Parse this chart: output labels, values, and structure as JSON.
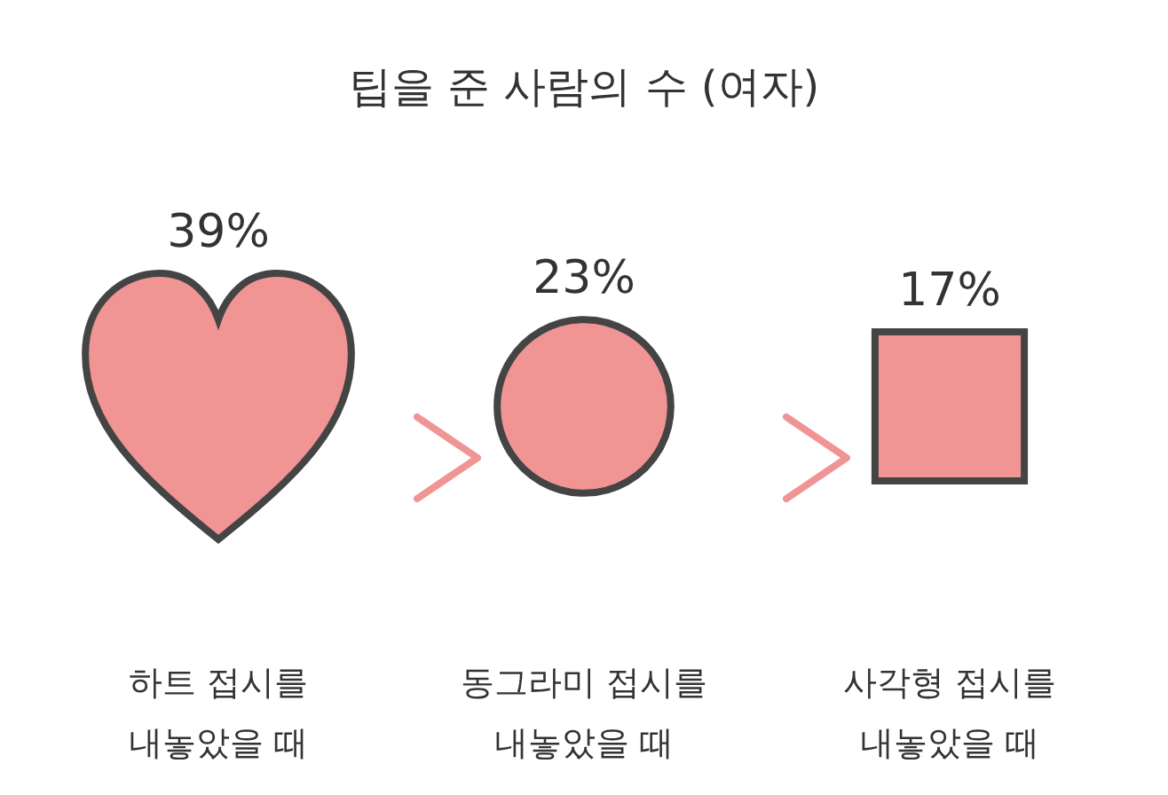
{
  "chart_data": {
    "type": "other",
    "title": "팁을 준 사람의 수 (여자)",
    "categories": [
      "하트 접시를\n내놓았을 때",
      "동그라미 접시를\n내놓았을 때",
      "사각형 접시를\n내놓았을 때"
    ],
    "values": [
      39,
      23,
      17
    ],
    "value_labels": [
      "39%",
      "23%",
      "17%"
    ],
    "color": "#f09494"
  }
}
